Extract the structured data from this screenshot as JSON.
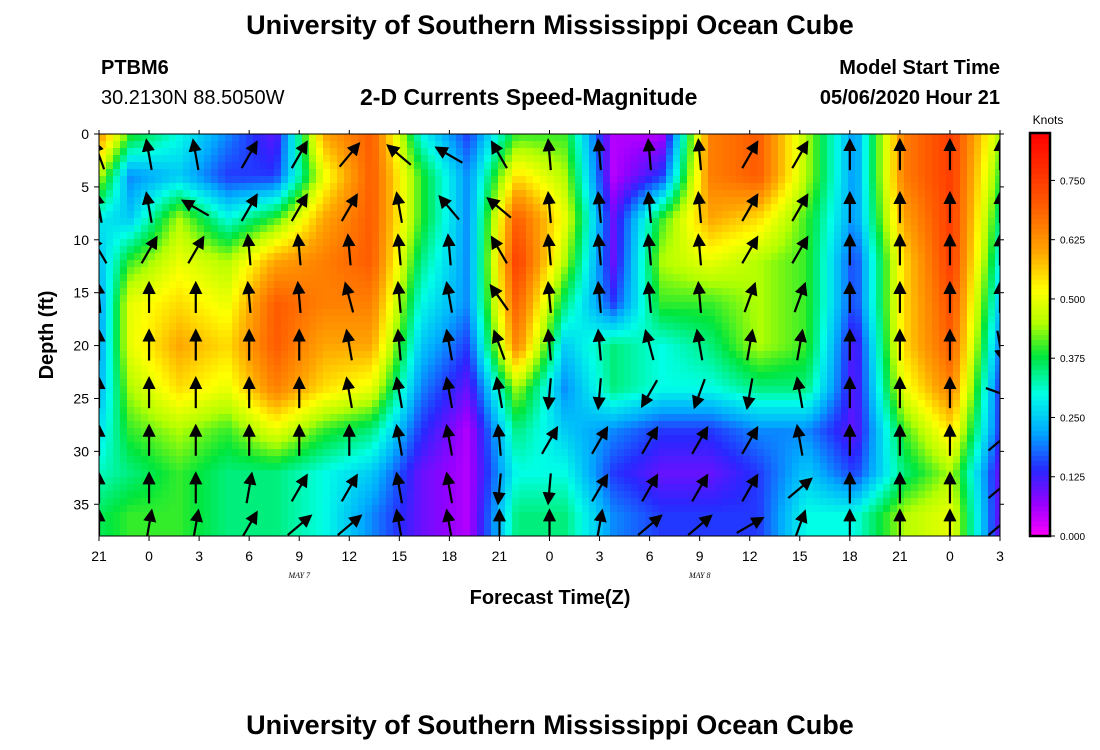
{
  "header": {
    "title_top": "University of Southern Mississippi Ocean Cube",
    "title_bottom": "University of Southern Mississippi Ocean Cube",
    "station_id": "PTBM6",
    "station_coords": "30.2130N 88.5050W",
    "plot_title": "2-D Currents Speed-Magnitude",
    "model_start_label": "Model Start Time",
    "model_start_value": "05/06/2020 Hour 21"
  },
  "chart_data": {
    "type": "heatmap",
    "title": "2-D Currents Speed-Magnitude",
    "xlabel": "Forecast Time(Z)",
    "ylabel": "Depth (ft)",
    "x_tick_labels": [
      "21",
      "0",
      "3",
      "6",
      "9",
      "12",
      "15",
      "18",
      "21",
      "0",
      "3",
      "6",
      "9",
      "12",
      "15",
      "18",
      "21",
      "0",
      "3"
    ],
    "x_hours": [
      0,
      3,
      6,
      9,
      12,
      15,
      18,
      21,
      24,
      27,
      30,
      33,
      36,
      39,
      42,
      45,
      48,
      51,
      54
    ],
    "date_labels": [
      {
        "text": "MAY 7",
        "hour": 15
      },
      {
        "text": "MAY 8",
        "hour": 39
      }
    ],
    "y_ticks": [
      0,
      5,
      10,
      15,
      20,
      25,
      30,
      35
    ],
    "ylim": [
      0,
      38
    ],
    "y_inverted": true,
    "colorbar": {
      "label": "Knots",
      "ticks": [
        "0.000",
        "0.125",
        "0.250",
        "0.375",
        "0.500",
        "0.625",
        "0.750"
      ],
      "tick_values": [
        0,
        0.125,
        0.25,
        0.375,
        0.5,
        0.625,
        0.75
      ],
      "range": [
        0,
        0.85
      ]
    },
    "depths": [
      0,
      4,
      8,
      12,
      16,
      20,
      24,
      28,
      32,
      36
    ],
    "speed_grid": [
      [
        0.75,
        0.4,
        0.3,
        0.2,
        0.1,
        0.6,
        0.7,
        0.3,
        0.15,
        0.4,
        0.4,
        0.05,
        0.05,
        0.65,
        0.7,
        0.45,
        0.2,
        0.65,
        0.75,
        0.45
      ],
      [
        0.6,
        0.2,
        0.25,
        0.15,
        0.15,
        0.5,
        0.7,
        0.4,
        0.2,
        0.55,
        0.45,
        0.05,
        0.15,
        0.65,
        0.7,
        0.45,
        0.2,
        0.65,
        0.75,
        0.4
      ],
      [
        0.3,
        0.25,
        0.45,
        0.3,
        0.4,
        0.6,
        0.7,
        0.4,
        0.2,
        0.7,
        0.5,
        0.1,
        0.4,
        0.6,
        0.55,
        0.4,
        0.2,
        0.6,
        0.75,
        0.35
      ],
      [
        0.15,
        0.4,
        0.5,
        0.45,
        0.6,
        0.65,
        0.7,
        0.35,
        0.2,
        0.75,
        0.45,
        0.1,
        0.45,
        0.5,
        0.45,
        0.4,
        0.15,
        0.55,
        0.75,
        0.3
      ],
      [
        0.05,
        0.5,
        0.55,
        0.5,
        0.7,
        0.65,
        0.65,
        0.3,
        0.2,
        0.7,
        0.35,
        0.15,
        0.4,
        0.4,
        0.45,
        0.4,
        0.15,
        0.55,
        0.72,
        0.25
      ],
      [
        0.05,
        0.5,
        0.6,
        0.55,
        0.7,
        0.6,
        0.6,
        0.25,
        0.15,
        0.65,
        0.25,
        0.35,
        0.3,
        0.35,
        0.45,
        0.4,
        0.1,
        0.55,
        0.7,
        0.2
      ],
      [
        0.1,
        0.45,
        0.55,
        0.5,
        0.65,
        0.55,
        0.5,
        0.2,
        0.1,
        0.45,
        0.2,
        0.35,
        0.3,
        0.3,
        0.35,
        0.35,
        0.1,
        0.5,
        0.65,
        0.15
      ],
      [
        0.2,
        0.4,
        0.45,
        0.4,
        0.5,
        0.4,
        0.35,
        0.15,
        0.05,
        0.35,
        0.25,
        0.2,
        0.15,
        0.15,
        0.2,
        0.2,
        0.1,
        0.4,
        0.55,
        0.15
      ],
      [
        0.3,
        0.35,
        0.4,
        0.35,
        0.35,
        0.3,
        0.25,
        0.1,
        0.05,
        0.3,
        0.3,
        0.15,
        0.1,
        0.1,
        0.15,
        0.25,
        0.15,
        0.35,
        0.45,
        0.1
      ],
      [
        0.35,
        0.4,
        0.4,
        0.35,
        0.35,
        0.3,
        0.2,
        0.1,
        0.05,
        0.35,
        0.35,
        0.2,
        0.15,
        0.15,
        0.15,
        0.3,
        0.3,
        0.45,
        0.5,
        0.1
      ]
    ],
    "arrow_hours": [
      -1,
      0,
      3,
      5.8,
      9,
      12,
      15,
      18,
      21,
      24,
      27,
      30,
      33,
      36,
      39,
      42,
      45,
      48,
      51,
      54
    ],
    "arrow_depths": [
      2,
      7,
      11,
      15.5,
      20,
      24.5,
      29,
      33.5,
      37
    ],
    "arrow_angles_deg": [
      [
        -60,
        -110,
        -100,
        -100,
        -60,
        -60,
        -50,
        -140,
        -150,
        -120,
        -95,
        -95,
        -95,
        -95,
        -60,
        -60,
        -90,
        -90,
        -90,
        -90
      ],
      [
        -100,
        -100,
        -100,
        -150,
        -60,
        -60,
        -60,
        -100,
        -130,
        -140,
        -95,
        -95,
        -95,
        -95,
        -60,
        -60,
        -90,
        -90,
        -90,
        -90
      ],
      [
        -20,
        -120,
        -60,
        -60,
        -95,
        -95,
        -95,
        -95,
        -95,
        -120,
        -95,
        -95,
        -95,
        -95,
        -60,
        -60,
        -90,
        -90,
        -90,
        -90
      ],
      [
        0,
        -95,
        -90,
        -90,
        -95,
        -95,
        -105,
        -95,
        -100,
        -125,
        -95,
        -95,
        -95,
        -95,
        -70,
        -70,
        -90,
        -90,
        -90,
        -90
      ],
      [
        0,
        -90,
        -90,
        -90,
        -90,
        -90,
        -100,
        -95,
        -100,
        -110,
        -95,
        -95,
        -105,
        -100,
        -80,
        -80,
        -90,
        -90,
        -90,
        80
      ],
      [
        0,
        -90,
        -90,
        -90,
        -90,
        -90,
        -100,
        -100,
        -100,
        -100,
        95,
        95,
        120,
        110,
        100,
        -100,
        -90,
        -90,
        -90,
        20
      ],
      [
        100,
        -90,
        -90,
        -90,
        -90,
        -90,
        -90,
        -100,
        -100,
        -95,
        -60,
        -60,
        -60,
        -60,
        -60,
        -100,
        -90,
        -90,
        -90,
        -40
      ],
      [
        160,
        -90,
        -90,
        -90,
        -80,
        -60,
        -60,
        -100,
        -100,
        95,
        95,
        -60,
        -60,
        -60,
        -60,
        -40,
        -90,
        -90,
        -90,
        -40
      ],
      [
        -10,
        -90,
        -80,
        -80,
        -60,
        -40,
        -40,
        -100,
        -100,
        -90,
        -90,
        -80,
        -40,
        -40,
        -30,
        -70,
        -90,
        -90,
        -90,
        -40
      ]
    ]
  }
}
